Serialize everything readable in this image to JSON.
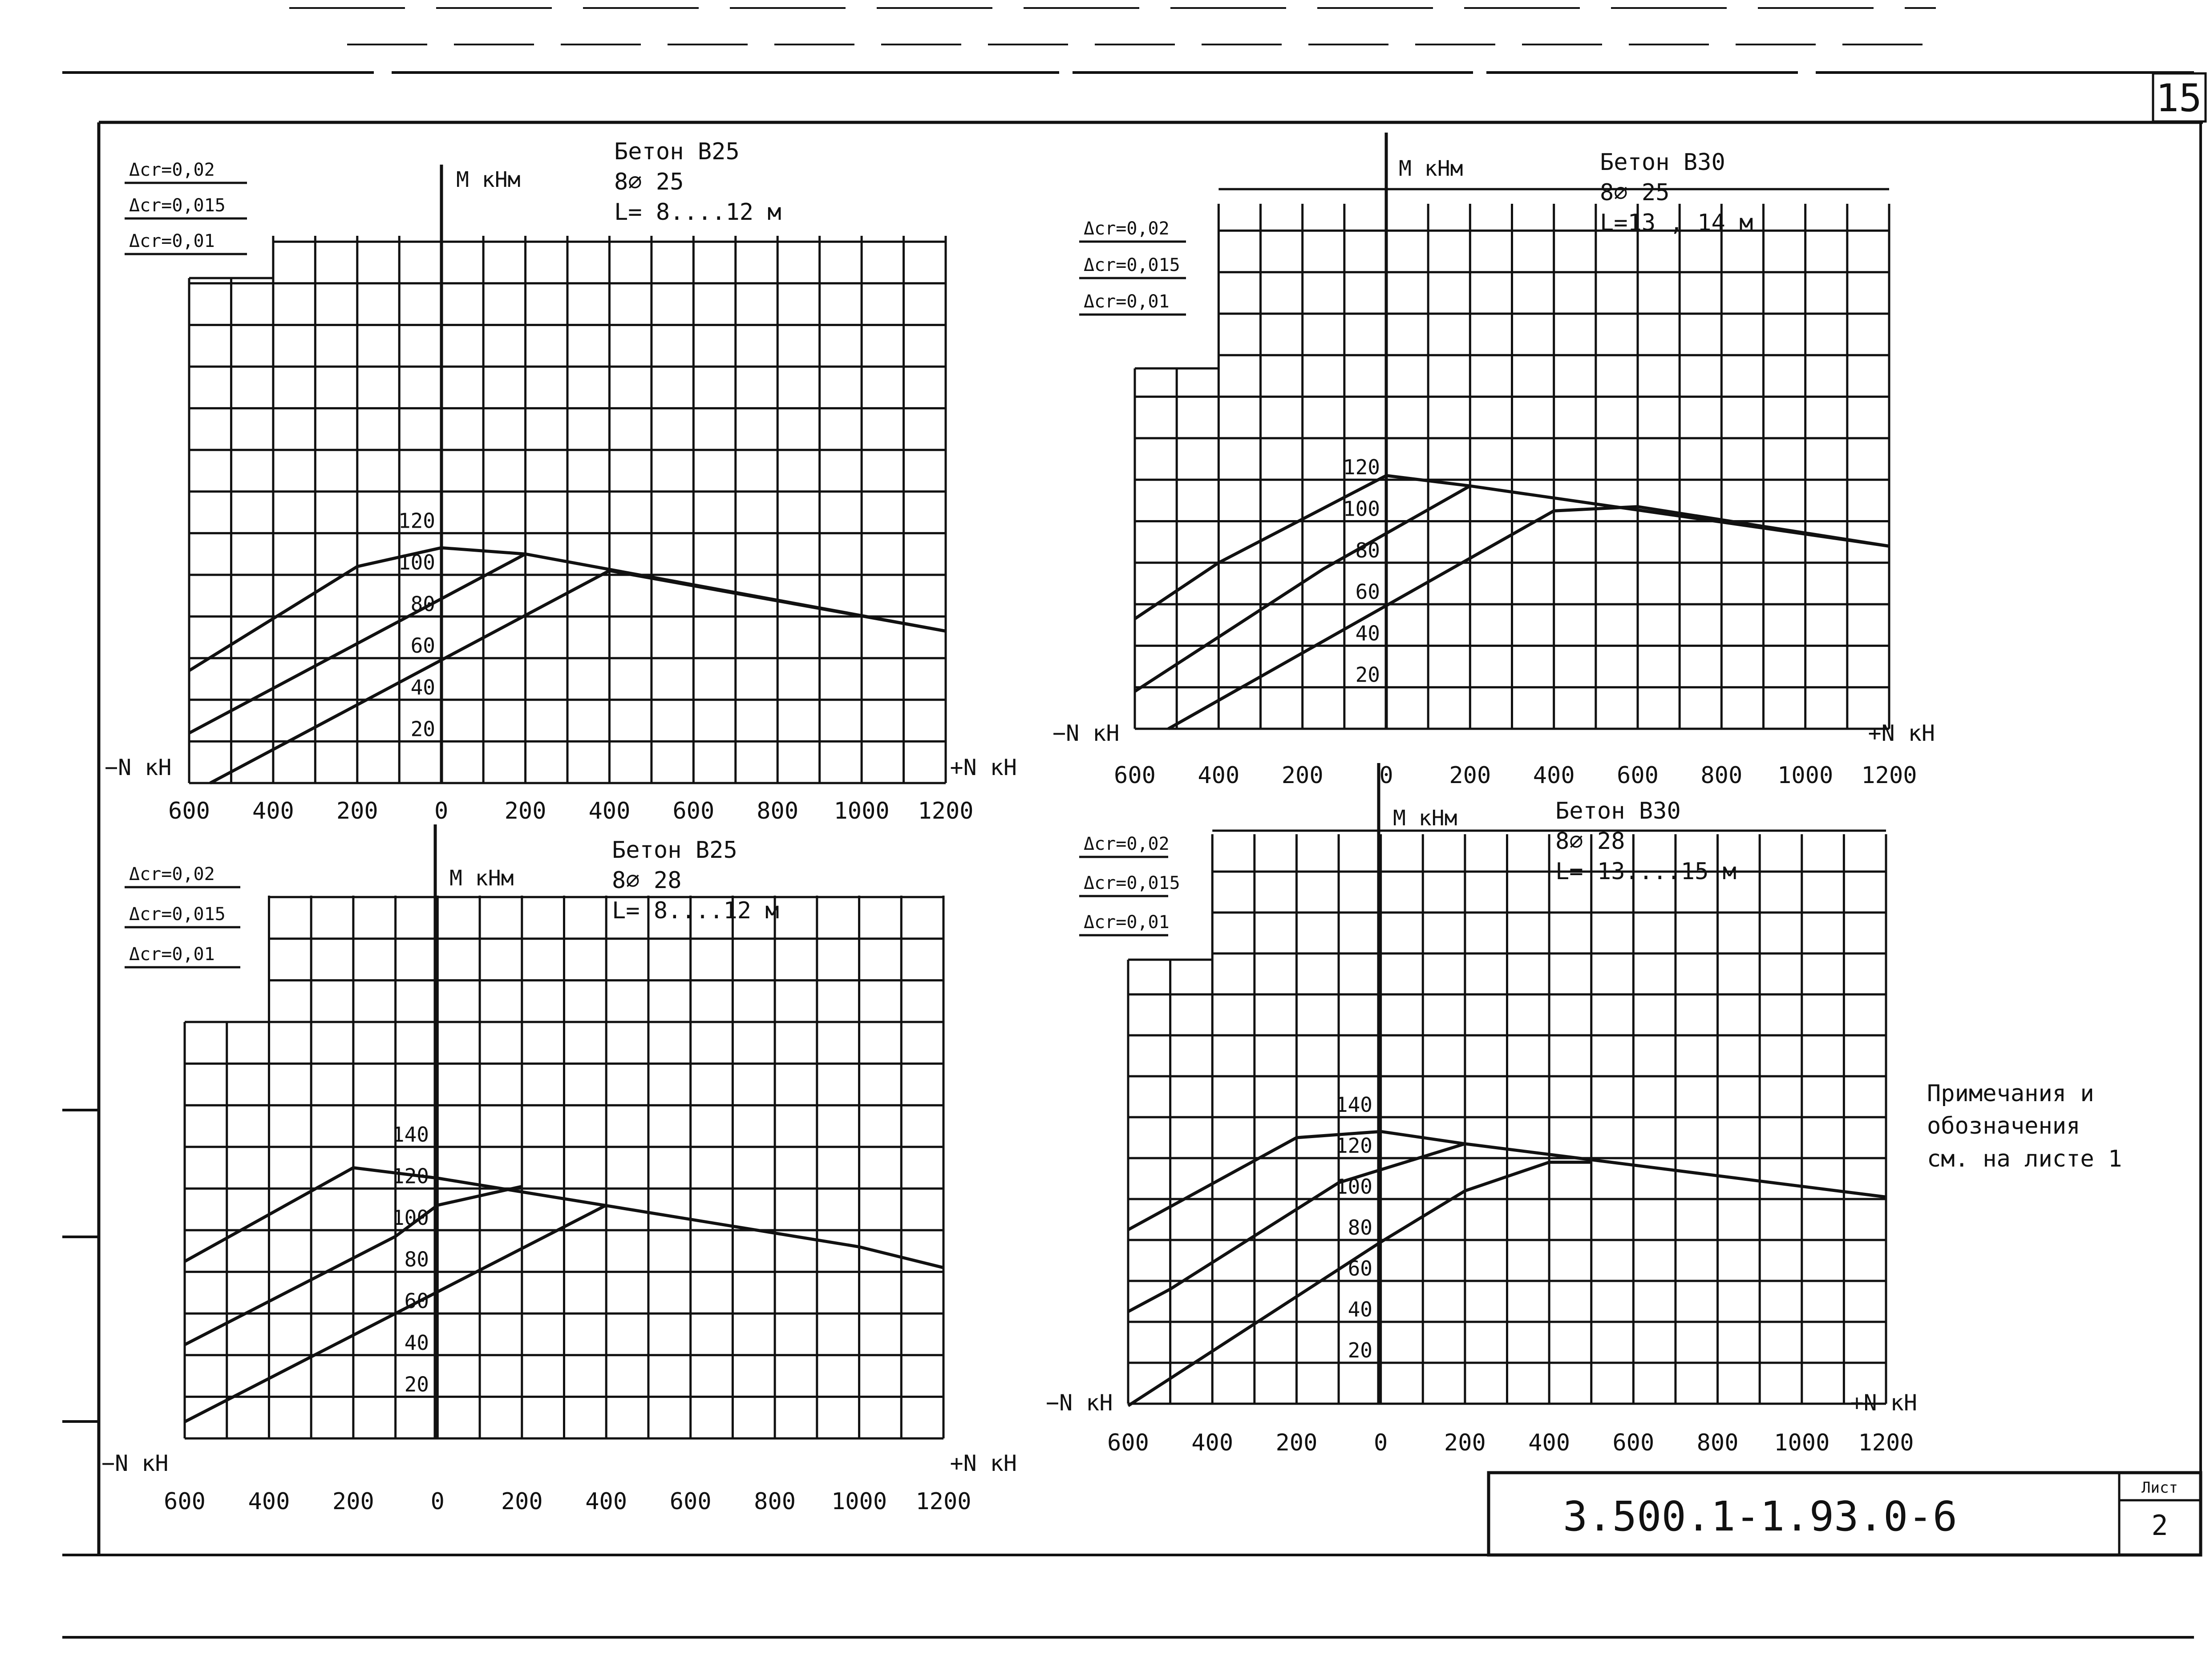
{
  "sheet": {
    "page_number": "15",
    "document_code": "3.500.1-1.93.0-6",
    "sheet_label": "Лист",
    "sheet_number": "2",
    "notes": [
      "Примечания и",
      "обозначения",
      "см. на листе 1"
    ]
  },
  "chart_data": [
    {
      "type": "line",
      "info": [
        "Бетон В25",
        "8∅ 25",
        "L= 8....12 м"
      ],
      "ylabel": "М кНм",
      "xlabel_left": "−N кН",
      "xlabel_right": "+N кН",
      "x_tick_labels": [
        "600",
        "400",
        "200",
        "0",
        "200",
        "400",
        "600",
        "800",
        "1000",
        "1200"
      ],
      "y_tick_labels": [
        "20",
        "40",
        "60",
        "80",
        "100",
        "120"
      ],
      "xlim": [
        -600,
        1200
      ],
      "ylim": [
        0,
        120
      ],
      "series": [
        {
          "name": "Δcr=0,02",
          "x": [
            -600,
            -200,
            0,
            200,
            1200
          ],
          "y": [
            54,
            104,
            113,
            110,
            73
          ]
        },
        {
          "name": "Δcr=0,015",
          "x": [
            -600,
            200
          ],
          "y": [
            24,
            110
          ]
        },
        {
          "name": "Δcr=0,01",
          "x": [
            -550,
            400,
            1200
          ],
          "y": [
            0,
            102,
            73
          ]
        }
      ]
    },
    {
      "type": "line",
      "info": [
        "Бетон В30",
        "8∅ 25",
        "L=13 , 14 м"
      ],
      "ylabel": "М кНм",
      "xlabel_left": "−N кН",
      "xlabel_right": "+N кН",
      "x_tick_labels": [
        "600",
        "400",
        "200",
        "0",
        "200",
        "400",
        "600",
        "800",
        "1000",
        "1200"
      ],
      "y_tick_labels": [
        "20",
        "40",
        "60",
        "80",
        "100",
        "120"
      ],
      "xlim": [
        -600,
        1200
      ],
      "ylim": [
        0,
        120
      ],
      "series": [
        {
          "name": "Δcr=0,02",
          "x": [
            -600,
            -400,
            0,
            200,
            1200
          ],
          "y": [
            53,
            80,
            122,
            117,
            88
          ]
        },
        {
          "name": "Δcr=0,015",
          "x": [
            -600,
            -150,
            200
          ],
          "y": [
            18,
            77,
            117
          ]
        },
        {
          "name": "Δcr=0,01",
          "x": [
            -520,
            400,
            600,
            1200
          ],
          "y": [
            0,
            105,
            107,
            88
          ]
        }
      ]
    },
    {
      "type": "line",
      "info": [
        "Бетон В25",
        "8∅ 28",
        "L= 8....12 м"
      ],
      "ylabel": "М кНм",
      "xlabel_left": "−N кН",
      "xlabel_right": "+N кН",
      "x_tick_labels": [
        "600",
        "400",
        "200",
        "0",
        "200",
        "400",
        "600",
        "800",
        "1000",
        "1200"
      ],
      "y_tick_labels": [
        "20",
        "40",
        "60",
        "80",
        "100",
        "120",
        "140"
      ],
      "xlim": [
        -600,
        1200
      ],
      "ylim": [
        0,
        140
      ],
      "series": [
        {
          "name": "Δcr=0,02",
          "x": [
            -600,
            -200,
            0,
            1000,
            1200
          ],
          "y": [
            85,
            130,
            125,
            92,
            82
          ]
        },
        {
          "name": "Δcr=0,015",
          "x": [
            -600,
            -100,
            0,
            200
          ],
          "y": [
            45,
            97,
            112,
            121
          ]
        },
        {
          "name": "Δcr=0,01",
          "x": [
            -600,
            400
          ],
          "y": [
            8,
            112
          ]
        }
      ]
    },
    {
      "type": "line",
      "info": [
        "Бетон В30",
        "8∅ 28",
        "L= 13....15 м"
      ],
      "ylabel": "М кНм",
      "xlabel_left": "−N кН",
      "xlabel_right": "+N кН",
      "x_tick_labels": [
        "600",
        "400",
        "200",
        "0",
        "200",
        "400",
        "600",
        "800",
        "1000",
        "1200"
      ],
      "y_tick_labels": [
        "20",
        "40",
        "60",
        "80",
        "100",
        "120",
        "140"
      ],
      "xlim": [
        -600,
        1200
      ],
      "ylim": [
        0,
        140
      ],
      "series": [
        {
          "name": "Δcr=0,02",
          "x": [
            -600,
            -200,
            0,
            200,
            1200
          ],
          "y": [
            85,
            130,
            133,
            127,
            101
          ]
        },
        {
          "name": "Δcr=0,015",
          "x": [
            -600,
            -500,
            -100,
            200
          ],
          "y": [
            45,
            56,
            108,
            127
          ]
        },
        {
          "name": "Δcr=0,01",
          "x": [
            -600,
            0,
            200,
            400,
            500
          ],
          "y": [
            -1,
            79,
            104,
            118,
            118
          ]
        }
      ]
    }
  ]
}
